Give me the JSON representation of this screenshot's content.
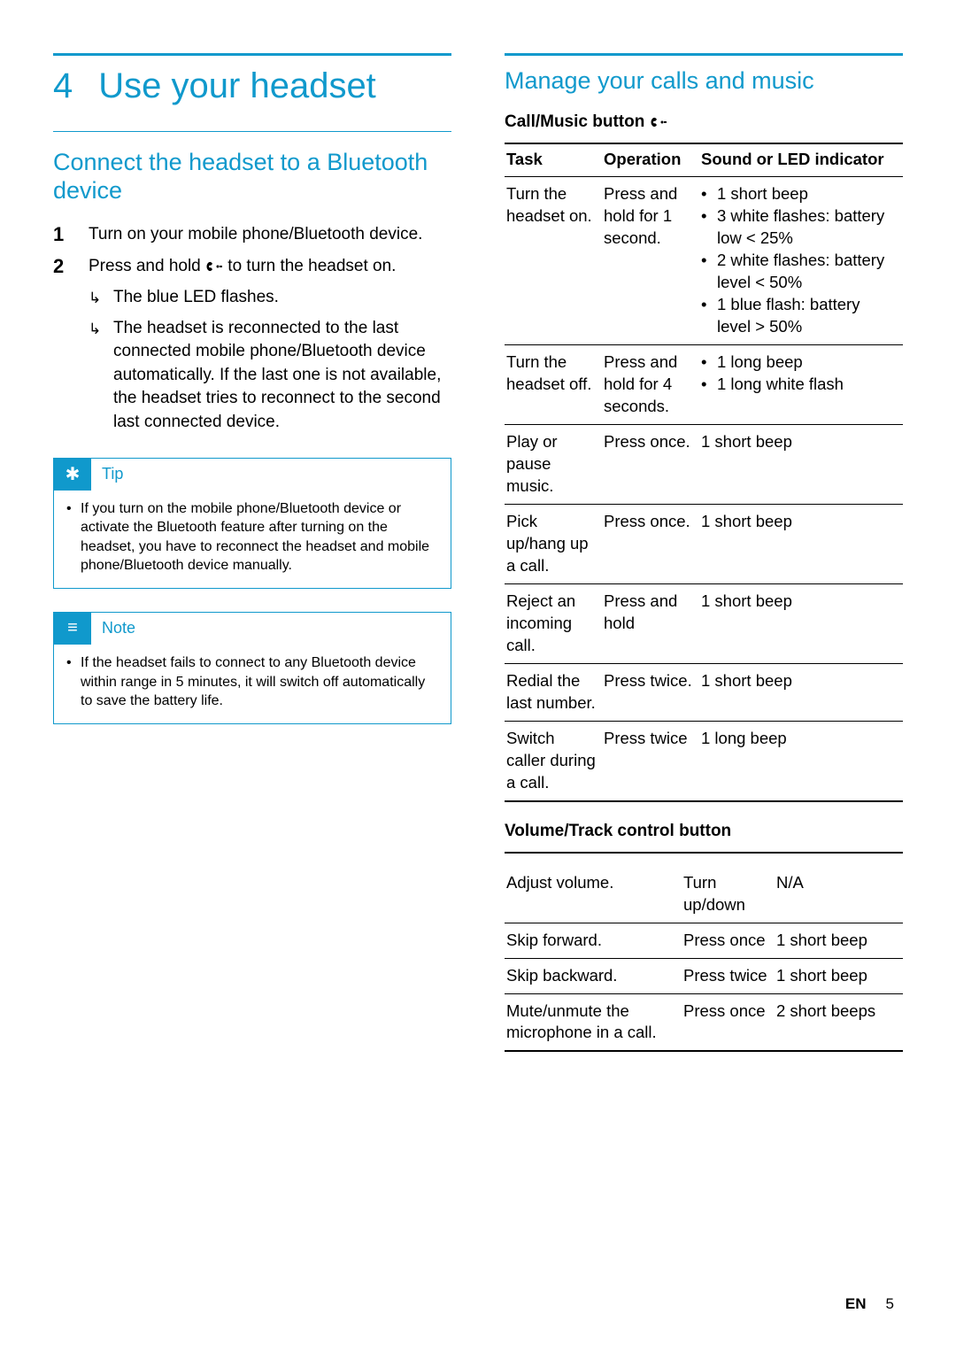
{
  "colors": {
    "accent": "#1099cc",
    "text": "#000000",
    "bg": "#ffffff"
  },
  "chapter": {
    "num": "4",
    "title": "Use your headset"
  },
  "left": {
    "h2": "Connect the headset to a Bluetooth device",
    "steps": [
      {
        "num": "1",
        "text": "Turn on your mobile phone/Bluetooth device."
      },
      {
        "num": "2",
        "text_a": "Press and hold ",
        "text_b": " to turn the headset on.",
        "subs": [
          "The blue LED flashes.",
          "The headset is reconnected to the last connected mobile phone/Bluetooth device automatically. If the last one is not available, the headset tries to reconnect to the second last connected device."
        ]
      }
    ],
    "tip": {
      "label": "Tip",
      "text": "If you turn on the mobile phone/Bluetooth device or activate the Bluetooth feature after turning on the headset, you have to reconnect the headset and mobile phone/Bluetooth device manually."
    },
    "note": {
      "label": "Note",
      "text": "If the headset fails to connect to any Bluetooth device within range in 5 minutes, it will switch off automatically to save the battery life."
    }
  },
  "right": {
    "h2": "Manage your calls and music",
    "table1_title": "Call/Music button ",
    "table1_headers": [
      "Task",
      "Operation",
      "Sound or LED indicator"
    ],
    "table1_rows": [
      {
        "task": "Turn the headset on.",
        "op": "Press and hold for 1 second.",
        "ind": [
          "1 short beep",
          "3 white flashes: battery low < 25%",
          "2 white flashes: battery level < 50%",
          "1 blue flash: battery level > 50%"
        ]
      },
      {
        "task": "Turn the headset off.",
        "op": "Press and hold for 4 seconds.",
        "ind": [
          "1 long beep",
          "1 long white flash"
        ]
      },
      {
        "task": "Play or pause music.",
        "op": "Press once.",
        "ind_plain": "1 short beep"
      },
      {
        "task": "Pick up/hang up a call.",
        "op": "Press once.",
        "ind_plain": "1 short beep"
      },
      {
        "task": "Reject an incoming call.",
        "op": "Press and hold",
        "ind_plain": "1 short beep"
      },
      {
        "task": "Redial the last number.",
        "op": "Press twice.",
        "ind_plain": "1 short beep"
      },
      {
        "task": "Switch caller during a call.",
        "op": "Press twice",
        "ind_plain": "1 long beep"
      }
    ],
    "table2_title": "Volume/Track control button",
    "table2_rows": [
      {
        "task": "Adjust volume.",
        "op": "Turn up/down",
        "ind": "N/A"
      },
      {
        "task": "Skip forward.",
        "op": "Press once",
        "ind": "1 short beep"
      },
      {
        "task": "Skip backward.",
        "op": "Press twice",
        "ind": "1 short beep"
      },
      {
        "task": "Mute/unmute the microphone in a call.",
        "op": "Press once",
        "ind": "2 short beeps"
      }
    ]
  },
  "footer": {
    "lang": "EN",
    "page": "5"
  }
}
